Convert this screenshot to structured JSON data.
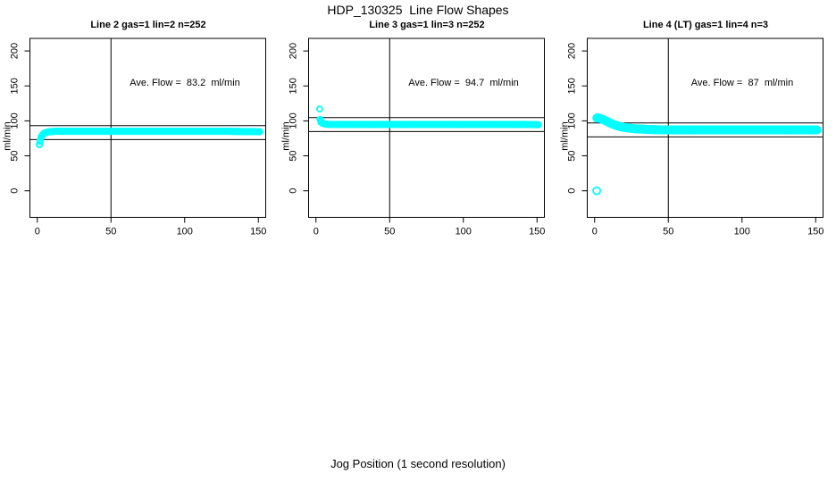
{
  "figure": {
    "title": "HDP_130325  Line Flow Shapes",
    "xlabel": "Jog Position (1 second resolution)",
    "background": "#FFFFFF",
    "line_color": "#000000",
    "point_color": "#00FFFF"
  },
  "chart_data": [
    {
      "type": "scatter",
      "title": "Line 2 gas=1 lin=2 n=252",
      "ylabel": "ml/min",
      "ave_label": "Ave. Flow =  83.2  ml/min",
      "ave_flow": 83.2,
      "n": 252,
      "xlim": [
        -5,
        155
      ],
      "ylim": [
        -38,
        218
      ],
      "x_ticks": [
        0,
        50,
        100,
        150
      ],
      "y_ticks": [
        0,
        50,
        100,
        150,
        200
      ],
      "vline_x": 50,
      "ref_lines": [
        73.2,
        93.2
      ],
      "marker_radius": 3,
      "sample_step": 0.5,
      "series_shape": [
        [
          1.4,
          66
        ],
        [
          2,
          72
        ],
        [
          2.6,
          77
        ],
        [
          3.5,
          80
        ],
        [
          4.5,
          82
        ],
        [
          6,
          83.5
        ],
        [
          8,
          84.5
        ],
        [
          12,
          85
        ],
        [
          20,
          85
        ],
        [
          40,
          85
        ],
        [
          70,
          85
        ],
        [
          100,
          85
        ],
        [
          130,
          85
        ],
        [
          151,
          84.5
        ]
      ],
      "outliers": [
        [
          1.4,
          66
        ]
      ]
    },
    {
      "type": "scatter",
      "title": "Line 3 gas=1 lin=3 n=252",
      "ylabel": "ml/min",
      "ave_label": "Ave. Flow =  94.7  ml/min",
      "ave_flow": 94.7,
      "n": 252,
      "xlim": [
        -5,
        155
      ],
      "ylim": [
        -38,
        218
      ],
      "x_ticks": [
        0,
        50,
        100,
        150
      ],
      "y_ticks": [
        0,
        50,
        100,
        150,
        200
      ],
      "vline_x": 50,
      "ref_lines": [
        84.7,
        104.7
      ],
      "marker_radius": 3,
      "sample_step": 0.5,
      "series_shape": [
        [
          2.8,
          102
        ],
        [
          3.5,
          98
        ],
        [
          4.5,
          96.5
        ],
        [
          6,
          95.5
        ],
        [
          8,
          95
        ],
        [
          12,
          95
        ],
        [
          20,
          95
        ],
        [
          40,
          95
        ],
        [
          60,
          95
        ],
        [
          80,
          95
        ],
        [
          100,
          95
        ],
        [
          120,
          95
        ],
        [
          140,
          95
        ],
        [
          151,
          94.5
        ]
      ],
      "outliers": [
        [
          2.5,
          117
        ]
      ]
    },
    {
      "type": "scatter",
      "title": "Line 4 (LT) gas=1 lin=4 n=3",
      "ylabel": "ml/min",
      "ave_label": "Ave. Flow =  87  ml/min",
      "ave_flow": 87,
      "n": 3,
      "xlim": [
        -5,
        155
      ],
      "ylim": [
        -38,
        218
      ],
      "x_ticks": [
        0,
        50,
        100,
        150
      ],
      "y_ticks": [
        0,
        50,
        100,
        150,
        200
      ],
      "vline_x": 50,
      "ref_lines": [
        77,
        97
      ],
      "marker_radius": 4,
      "sample_step": 0.5,
      "series_shape": [
        [
          1.5,
          104
        ],
        [
          3,
          104
        ],
        [
          4,
          103.5
        ],
        [
          5,
          102.5
        ],
        [
          6,
          101.5
        ],
        [
          7,
          100.5
        ],
        [
          8,
          99.5
        ],
        [
          10,
          97.5
        ],
        [
          12,
          95.5
        ],
        [
          14,
          94
        ],
        [
          16,
          92.5
        ],
        [
          18,
          91.5
        ],
        [
          20,
          90.5
        ],
        [
          24,
          89.5
        ],
        [
          28,
          88.5
        ],
        [
          34,
          88
        ],
        [
          40,
          87.5
        ],
        [
          50,
          87
        ],
        [
          70,
          87
        ],
        [
          90,
          87
        ],
        [
          110,
          87
        ],
        [
          130,
          87
        ],
        [
          151,
          87
        ]
      ],
      "outliers": [
        [
          1.4,
          0
        ]
      ]
    }
  ]
}
